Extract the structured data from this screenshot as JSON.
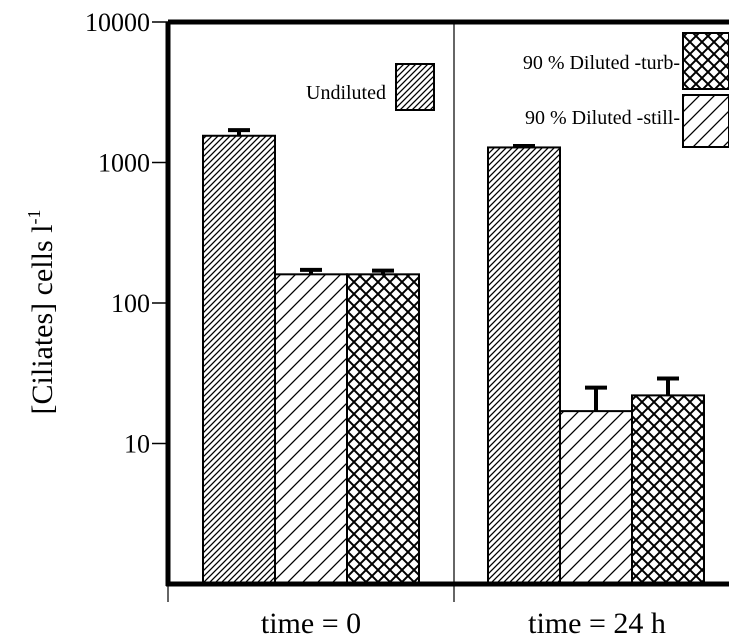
{
  "chart_data": {
    "type": "bar",
    "yscale": "log",
    "ylim": [
      1,
      10000
    ],
    "yticks": [
      10,
      100,
      1000,
      10000
    ],
    "ylabel": "[Ciliates] cells l",
    "ylabel_sup": "-1",
    "xlabel": "",
    "categories": [
      "time = 0",
      "time = 24 h"
    ],
    "series": [
      {
        "name": "Undiluted",
        "pattern": "fine-diagonal",
        "values": [
          1550,
          1280
        ],
        "errors": [
          150,
          30
        ]
      },
      {
        "name": "90 % Diluted -still-",
        "pattern": "wide-diagonal",
        "values": [
          160,
          17
        ],
        "errors": [
          12,
          8
        ]
      },
      {
        "name": "90 % Diluted -turb-",
        "pattern": "crosshatch",
        "values": [
          160,
          22
        ],
        "errors": [
          10,
          7
        ]
      }
    ],
    "grid": false,
    "legend": "top"
  }
}
